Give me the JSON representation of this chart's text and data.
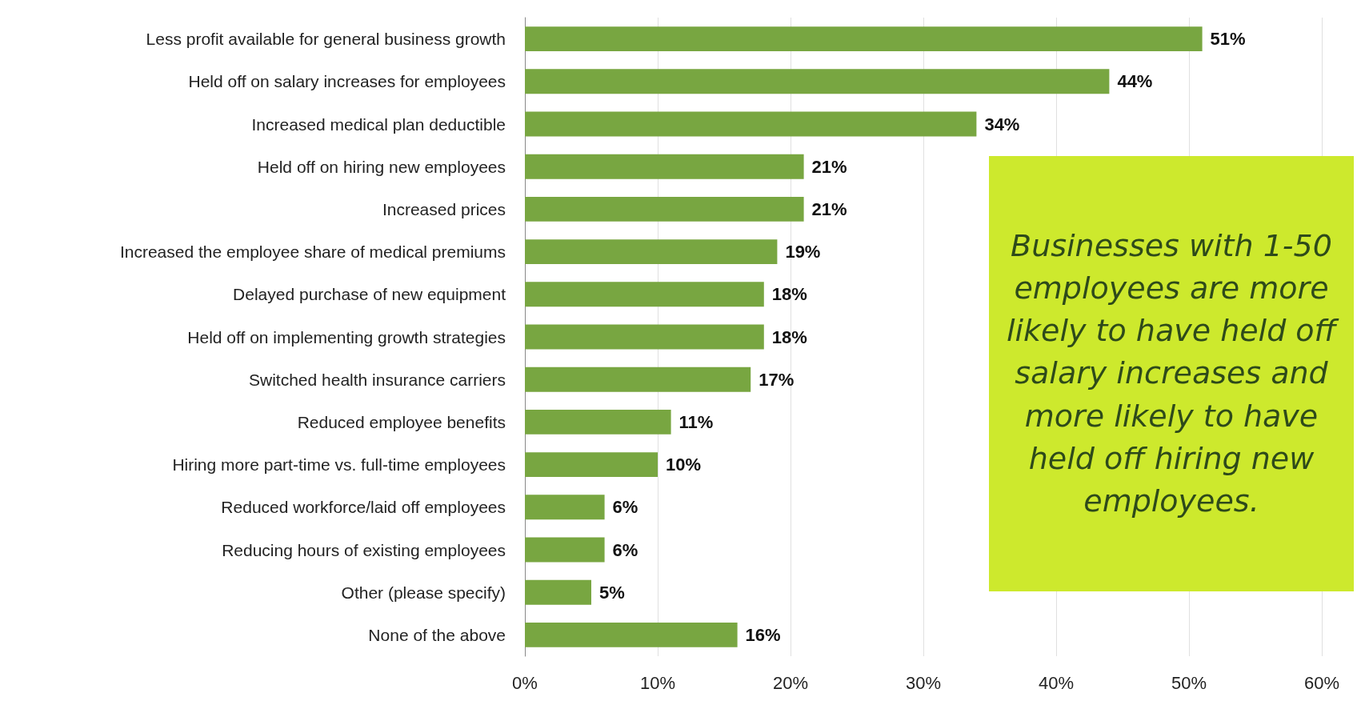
{
  "chart_data": {
    "type": "bar",
    "orientation": "horizontal",
    "categories": [
      "Less profit available for general business growth",
      "Held off on salary increases for employees",
      "Increased medical plan deductible",
      "Held off on hiring new employees",
      "Increased prices",
      "Increased the employee share of medical premiums",
      "Delayed purchase of new equipment",
      "Held off on implementing growth strategies",
      "Switched health insurance carriers",
      "Reduced employee benefits",
      "Hiring more part-time vs. full-time employees",
      "Reduced workforce/laid off employees",
      "Reducing hours of existing employees",
      "Other (please specify)",
      "None of the above"
    ],
    "values": [
      51,
      44,
      34,
      21,
      21,
      19,
      18,
      18,
      17,
      11,
      10,
      6,
      6,
      5,
      16
    ],
    "color": "#78a641",
    "value_labels": [
      "51%",
      "44%",
      "34%",
      "21%",
      "21%",
      "19%",
      "18%",
      "18%",
      "17%",
      "11%",
      "10%",
      "6%",
      "6%",
      "5%",
      "16%"
    ],
    "xlim": [
      0,
      60
    ],
    "xticks": [
      {
        "value": 0,
        "label": "0%"
      },
      {
        "value": 10,
        "label": "10%"
      },
      {
        "value": 20,
        "label": "20%"
      },
      {
        "value": 30,
        "label": "30%"
      },
      {
        "value": 40,
        "label": "40%"
      },
      {
        "value": 50,
        "label": "50%"
      },
      {
        "value": 60,
        "label": "60%"
      }
    ],
    "grid": "x",
    "annotations": [
      "Businesses with 1-50 employees are more likely to have held off salary increases and more likely to have held off hiring new employees."
    ]
  }
}
